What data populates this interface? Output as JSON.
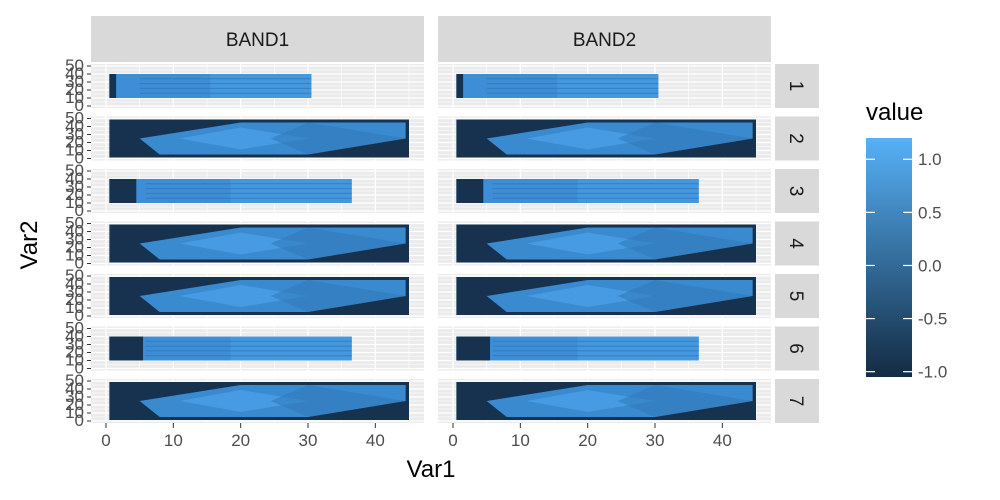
{
  "chart_data": {
    "type": "heatmap",
    "facet_columns": [
      "BAND1",
      "BAND2"
    ],
    "facet_rows": [
      "1",
      "2",
      "3",
      "4",
      "5",
      "6",
      "7"
    ],
    "xlabel": "Var1",
    "ylabel": "Var2",
    "xlim": [
      0,
      45
    ],
    "ylim": [
      0,
      50
    ],
    "x_ticks": [
      "0",
      "10",
      "20",
      "30",
      "40"
    ],
    "y_ticks": [
      "0",
      "10",
      "20",
      "30",
      "40",
      "50"
    ],
    "legend": {
      "title": "value",
      "ticks": [
        "1.0",
        "0.5",
        "0.0",
        "-0.5",
        "-1.0"
      ],
      "range": [
        -1.05,
        1.2
      ],
      "low_color": "#132b43",
      "high_color": "#56b1f7"
    },
    "panels": [
      {
        "row": "1",
        "shape": "rect",
        "data_xmax": 30.5,
        "dark_lead": 1.5
      },
      {
        "row": "2",
        "shape": "diamond",
        "data_xmax": 45,
        "dark_lead": 0
      },
      {
        "row": "3",
        "shape": "rect",
        "data_xmax": 36.5,
        "dark_lead": 4.5
      },
      {
        "row": "4",
        "shape": "diamond",
        "data_xmax": 45,
        "dark_lead": 0
      },
      {
        "row": "5",
        "shape": "diamond",
        "data_xmax": 45,
        "dark_lead": 0
      },
      {
        "row": "6",
        "shape": "rect",
        "data_xmax": 36.5,
        "dark_lead": 5.5
      },
      {
        "row": "7",
        "shape": "diamond",
        "data_xmax": 45,
        "dark_lead": 0
      }
    ]
  }
}
